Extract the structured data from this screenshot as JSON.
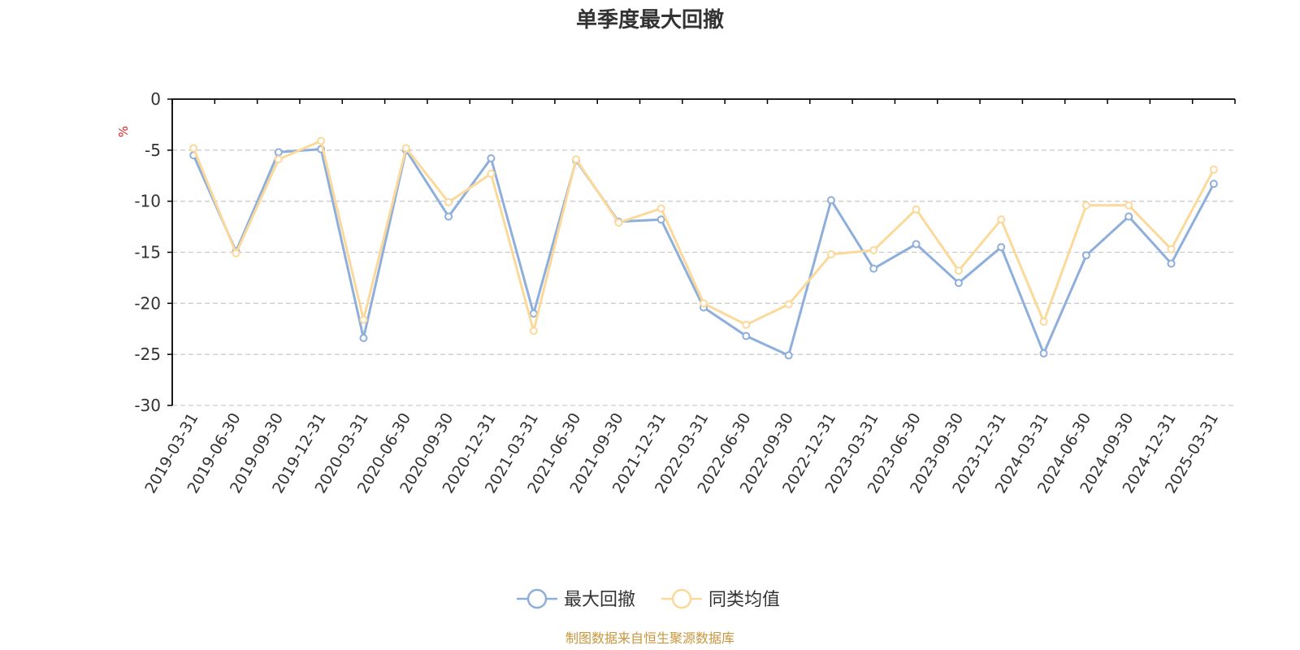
{
  "chart_data": {
    "type": "line",
    "title": "单季度最大回撤",
    "ylabel": "%",
    "ylim": [
      -30,
      0
    ],
    "yticks": [
      0,
      -5,
      -10,
      -15,
      -20,
      -25,
      -30
    ],
    "grid": true,
    "legend_position": "bottom-center",
    "categories": [
      "2019-03-31",
      "2019-06-30",
      "2019-09-30",
      "2019-12-31",
      "2020-03-31",
      "2020-06-30",
      "2020-09-30",
      "2020-12-31",
      "2021-03-31",
      "2021-06-30",
      "2021-09-30",
      "2021-12-31",
      "2022-03-31",
      "2022-06-30",
      "2022-09-30",
      "2022-12-31",
      "2023-03-31",
      "2023-06-30",
      "2023-09-30",
      "2023-12-31",
      "2024-03-31",
      "2024-06-30",
      "2024-09-30",
      "2024-12-31",
      "2025-03-31"
    ],
    "series": [
      {
        "name": "最大回撤",
        "color": "#8eaedc",
        "values": [
          -5.5,
          -14.9,
          -5.2,
          -4.9,
          -23.4,
          -5.0,
          -11.5,
          -5.8,
          -21.0,
          -6.0,
          -12.0,
          -11.8,
          -20.4,
          -23.2,
          -25.1,
          -9.9,
          -16.6,
          -14.2,
          -18.0,
          -14.5,
          -24.9,
          -15.3,
          -11.5,
          -16.1,
          -8.3
        ]
      },
      {
        "name": "同类均值",
        "color": "#fbd99a",
        "values": [
          -4.8,
          -15.1,
          -5.9,
          -4.1,
          -21.6,
          -4.8,
          -10.1,
          -7.3,
          -22.7,
          -5.9,
          -12.1,
          -10.7,
          -20.0,
          -22.1,
          -20.1,
          -15.2,
          -14.8,
          -10.8,
          -16.8,
          -11.8,
          -21.8,
          -10.4,
          -10.4,
          -14.7,
          -6.9
        ]
      }
    ]
  },
  "source_text": "制图数据来自恒生聚源数据库",
  "colors": {
    "axis": "#000000",
    "grid": "#cccccc",
    "unit": "#e02020",
    "source": "#c8963e",
    "text": "#333333"
  }
}
